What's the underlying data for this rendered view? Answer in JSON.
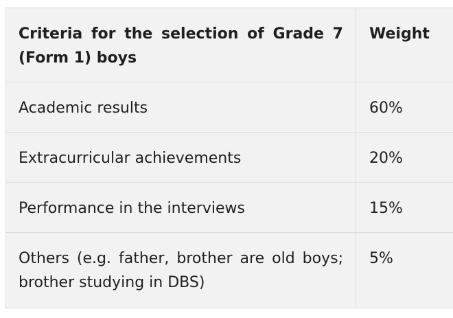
{
  "table": {
    "headers": {
      "criteria": "Criteria for the selection of Grade 7 (Form 1) boys",
      "weight": "Weight"
    },
    "rows": [
      {
        "criteria": "Academic results",
        "weight": "60%"
      },
      {
        "criteria": "Extracurricular achievements",
        "weight": "20%"
      },
      {
        "criteria": "Performance in the interviews",
        "weight": "15%"
      },
      {
        "criteria": "Others (e.g. father, brother are old boys; brother studying in DBS)",
        "weight": "5%"
      }
    ]
  }
}
